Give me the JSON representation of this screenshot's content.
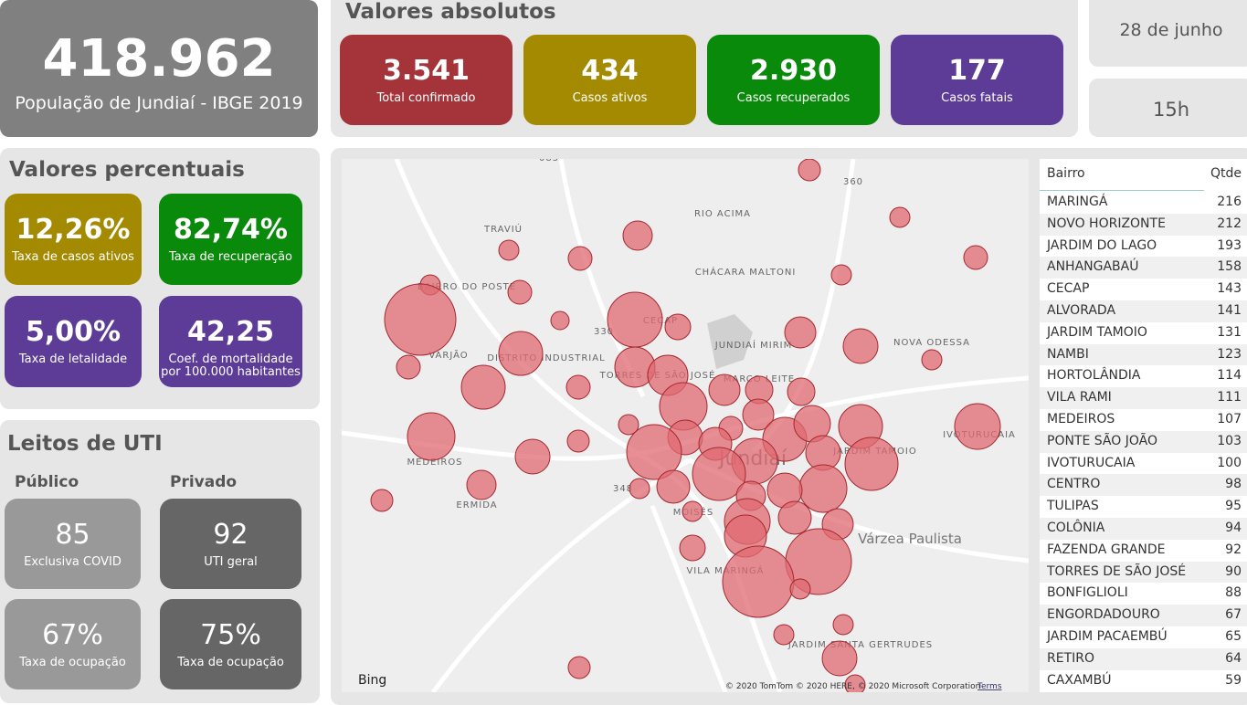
{
  "header": {
    "population": "418.962",
    "population_label": "População de Jundiaí - IBGE 2019",
    "date": "28 de junho",
    "hour": "15h"
  },
  "absolutos": {
    "title": "Valores absolutos",
    "cards": [
      {
        "value": "3.541",
        "label": "Total confirmado"
      },
      {
        "value": "434",
        "label": "Casos ativos"
      },
      {
        "value": "2.930",
        "label": "Casos recuperados"
      },
      {
        "value": "177",
        "label": "Casos fatais"
      }
    ]
  },
  "percentuais": {
    "title": "Valores percentuais",
    "cards": [
      {
        "value": "12,26%",
        "label": "Taxa de casos ativos"
      },
      {
        "value": "82,74%",
        "label": "Taxa de recuperação"
      },
      {
        "value": "5,00%",
        "label": "Taxa de letalidade"
      },
      {
        "value": "42,25",
        "label": "Coef. de mortalidade por 100.000 habitantes"
      }
    ]
  },
  "uti": {
    "title": "Leitos de UTI",
    "publico": "Público",
    "privado": "Privado",
    "cards": [
      {
        "value": "85",
        "label": "Exclusiva COVID"
      },
      {
        "value": "92",
        "label": "UTI geral"
      },
      {
        "value": "67%",
        "label": "Taxa de ocupação"
      },
      {
        "value": "75%",
        "label": "Taxa de ocupação"
      }
    ]
  },
  "map": {
    "labels": [
      "TRAVIÚ",
      "RIO ACIMA",
      "CHÁCARA MALTONI",
      "BAIRRO DO POSTE",
      "CECAP",
      "DISTRITO INDUSTRIAL",
      "VARJÃO",
      "TORRES DE SÃO JOSÉ",
      "MARCO LEITE",
      "JUNDIAÍ MIRIM",
      "NOVA ODESSA",
      "IVOTURUCAIA",
      "MEDEIROS",
      "ERMIDA",
      "JARDIM TAMOIO",
      "MOISÉS",
      "Várzea Paulista",
      "VILA MARINGÁ",
      "JARDIM SANTA GERTRUDES",
      "Jundiaí",
      "360",
      "330",
      "348",
      "083"
    ],
    "brand": "Bing",
    "copyright": "© 2020 TomTom © 2020 HERE, © 2020 Microsoft Corporation",
    "terms": "Terms"
  },
  "table": {
    "columns": [
      "Bairro",
      "Qtde"
    ],
    "rows": [
      [
        "MARINGÁ",
        216
      ],
      [
        "NOVO HORIZONTE",
        212
      ],
      [
        "JARDIM DO LAGO",
        193
      ],
      [
        "ANHANGABAÚ",
        158
      ],
      [
        "CECAP",
        143
      ],
      [
        "ALVORADA",
        141
      ],
      [
        "JARDIM TAMOIO",
        131
      ],
      [
        "NAMBI",
        123
      ],
      [
        "HORTOLÂNDIA",
        114
      ],
      [
        "VILA RAMI",
        111
      ],
      [
        "MEDEIROS",
        107
      ],
      [
        "PONTE SÃO JOÃO",
        103
      ],
      [
        "IVOTURUCAIA",
        100
      ],
      [
        "CENTRO",
        98
      ],
      [
        "TULIPAS",
        95
      ],
      [
        "COLÔNIA",
        94
      ],
      [
        "FAZENDA GRANDE",
        92
      ],
      [
        "TORRES DE SÃO JOSÉ",
        90
      ],
      [
        "BONFIGLIOLI",
        88
      ],
      [
        "ENGORDADOURO",
        67
      ],
      [
        "JARDIM PACAEMBÚ",
        65
      ],
      [
        "RETIRO",
        64
      ],
      [
        "CAXAMBÚ",
        59
      ]
    ]
  }
}
